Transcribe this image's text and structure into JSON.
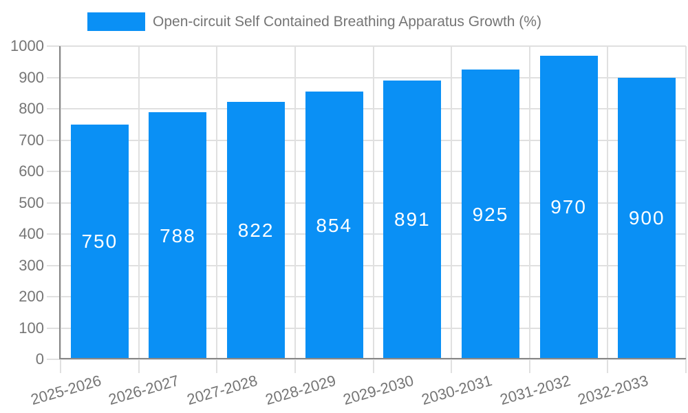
{
  "chart_data": {
    "type": "bar",
    "title": "Open-circuit Self Contained Breathing Apparatus Growth (%)",
    "legend_position": "top-center",
    "categories": [
      "2025-2026",
      "2026-2027",
      "2027-2028",
      "2028-2029",
      "2029-2030",
      "2030-2031",
      "2031-2032",
      "2032-2033"
    ],
    "series": [
      {
        "name": "Open-circuit Self Contained Breathing Apparatus Growth (%)",
        "values": [
          750,
          788,
          822,
          854,
          891,
          925,
          970,
          900
        ]
      }
    ],
    "xlabel": "",
    "ylabel": "",
    "ylim": [
      0,
      1000
    ],
    "ytick_step": 100,
    "ytick_labels": [
      "0",
      "100",
      "200",
      "300",
      "400",
      "500",
      "600",
      "700",
      "800",
      "900",
      "1000"
    ],
    "grid": true,
    "bar_color": "#0a90f5",
    "data_label_color": "#ffffff",
    "axis_text_color": "#757575",
    "gridline_color": "#e0e0e0",
    "axis_line_color": "#878787",
    "background_color": "#ffffff"
  }
}
